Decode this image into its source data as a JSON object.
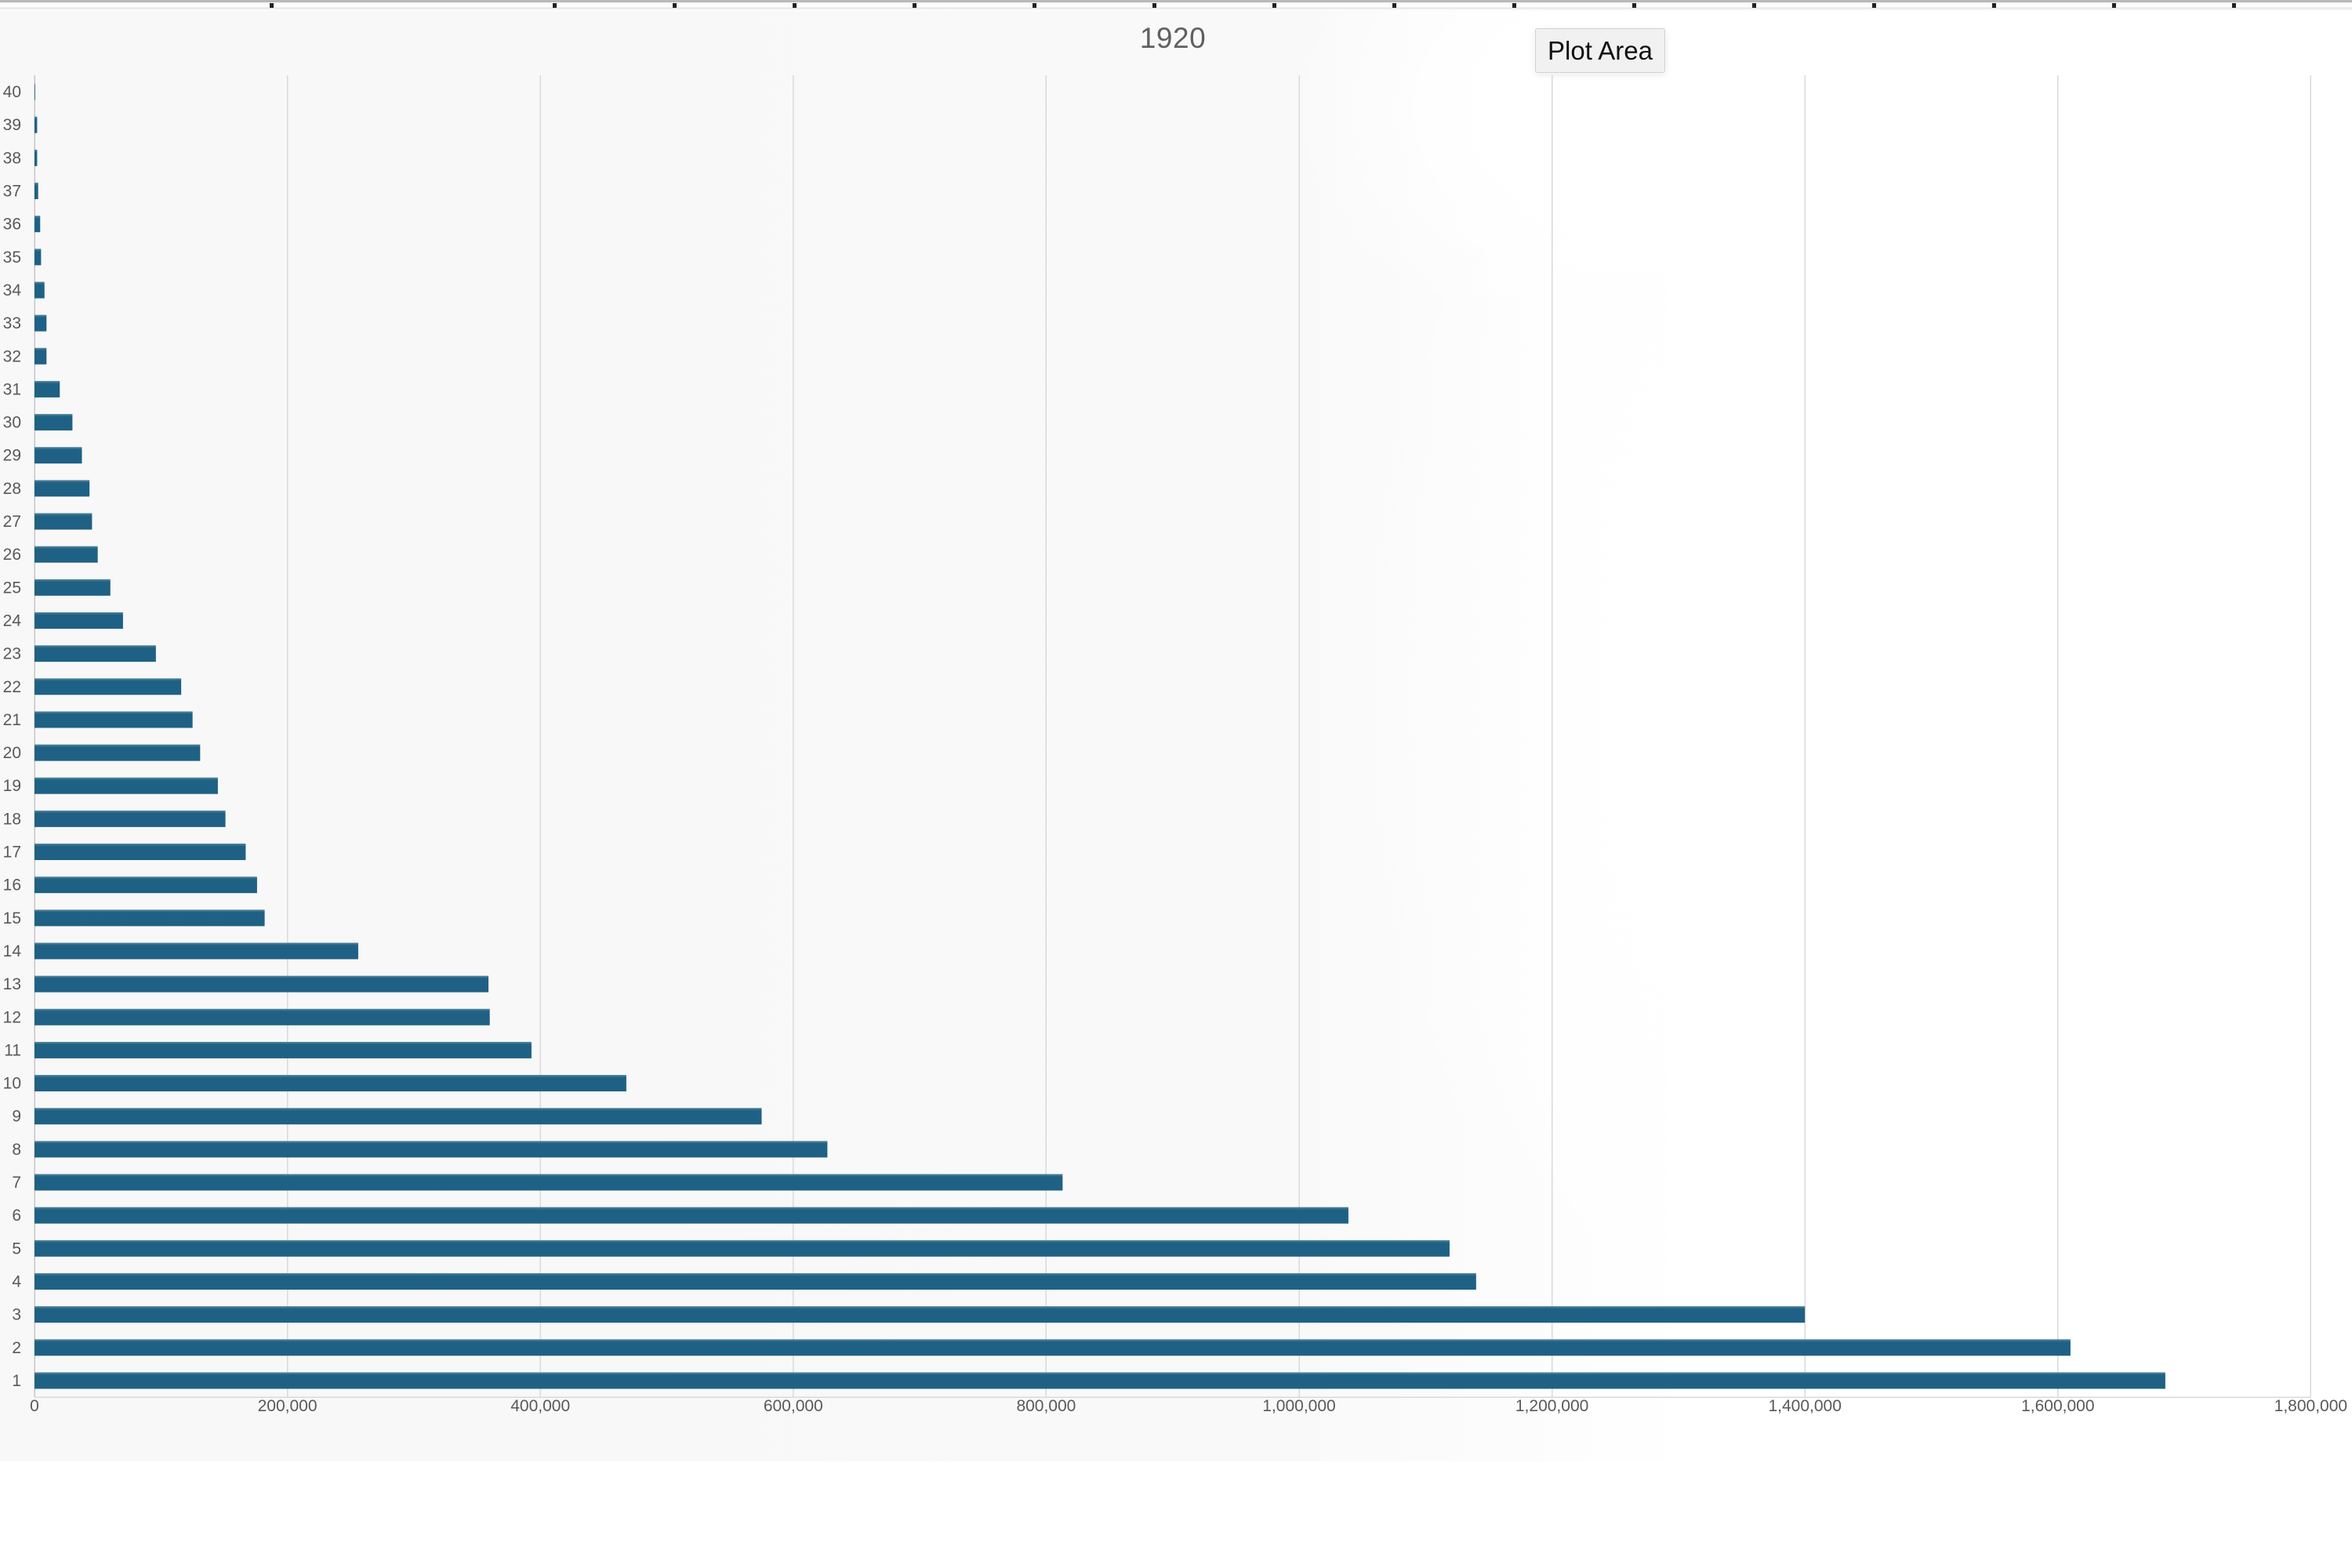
{
  "tooltip": {
    "label": "Plot Area"
  },
  "chart_data": {
    "type": "bar",
    "orientation": "horizontal",
    "title": "1920",
    "categories": [
      1,
      2,
      3,
      4,
      5,
      6,
      7,
      8,
      9,
      10,
      11,
      12,
      13,
      14,
      15,
      16,
      17,
      18,
      19,
      20,
      21,
      22,
      23,
      24,
      25,
      26,
      27,
      28,
      29,
      30,
      31,
      32,
      33,
      34,
      35,
      36,
      37,
      38,
      39,
      40
    ],
    "series": [
      {
        "name": "1920",
        "values": [
          1685000,
          1610000,
          1400000,
          1140000,
          1119000,
          1039000,
          813000,
          627000,
          575000,
          468000,
          393000,
          360000,
          359000,
          256000,
          182000,
          176000,
          167000,
          151000,
          145000,
          131000,
          125000,
          116000,
          96000,
          70000,
          60000,
          50000,
          45500,
          43500,
          37500,
          30000,
          20000,
          9500,
          9500,
          7900,
          5200,
          4500,
          2900,
          2100,
          2100,
          500
        ]
      }
    ],
    "category_order": "highest-category-at-top (40 at top, 1 at bottom)",
    "xlim": [
      0,
      1800000
    ],
    "x_tick_interval": 200000,
    "x_tick_labels": [
      "0",
      "200,000",
      "400,000",
      "600,000",
      "800,000",
      "1,000,000",
      "1,200,000",
      "1,400,000",
      "1,600,000",
      "1,800,000"
    ],
    "grid": "vertical-gridlines-on",
    "legend": "none",
    "colors": {
      "bar": "#1f6184",
      "bar_top_edge": "#56889e",
      "gridline": "#dadada",
      "axis_line": "#c6c6c6",
      "tick_label": "#595959",
      "title": "#606060"
    }
  }
}
